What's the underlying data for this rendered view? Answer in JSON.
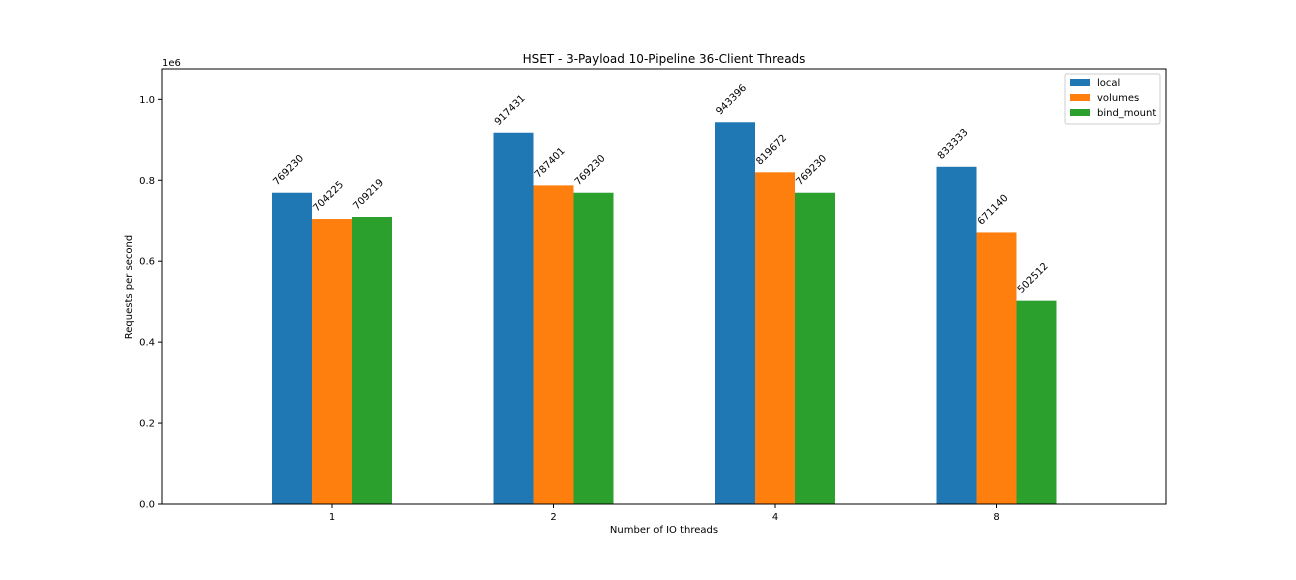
{
  "chart_data": {
    "type": "bar",
    "title": "HSET - 3-Payload 10-Pipeline 36-Client Threads",
    "xlabel": "Number of IO threads",
    "ylabel": "Requests per second",
    "y_scale_label": "1e6",
    "categories": [
      "1",
      "2",
      "4",
      "8"
    ],
    "series": [
      {
        "name": "local",
        "color": "#1f77b4",
        "values": [
          769230,
          917431,
          943396,
          833333
        ]
      },
      {
        "name": "volumes",
        "color": "#ff7f0e",
        "values": [
          704225,
          787401,
          819672,
          671140
        ]
      },
      {
        "name": "bind_mount",
        "color": "#2ca02c",
        "values": [
          709219,
          769230,
          769230,
          502512
        ]
      }
    ],
    "yticks": [
      "0.0",
      "0.2",
      "0.4",
      "0.6",
      "0.8",
      "1.0"
    ],
    "ytick_values": [
      0,
      200000,
      400000,
      600000,
      800000,
      1000000
    ],
    "ylim": [
      0,
      1075000
    ],
    "legend_position": "top-right",
    "grid": false
  }
}
